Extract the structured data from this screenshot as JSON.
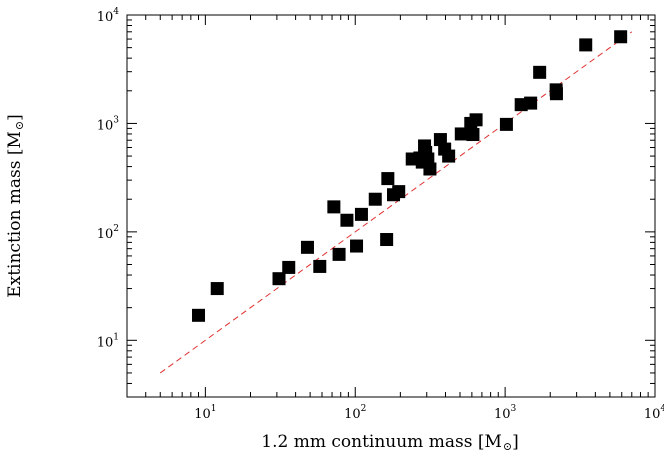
{
  "chart_data": {
    "type": "scatter",
    "title": "",
    "xlabel": "1.2 mm continuum mass [M",
    "ylabel": "Extinction mass [M",
    "xlabel_unit_symbol": "sun",
    "ylabel_unit_symbol": "sun",
    "xscale": "log",
    "yscale": "log",
    "xlim": [
      3,
      10000
    ],
    "ylim": [
      3,
      10000
    ],
    "grid": false,
    "legend": "none",
    "x_ticks": [
      {
        "base": "10",
        "exp": "1",
        "value": 10
      },
      {
        "base": "10",
        "exp": "2",
        "value": 100
      },
      {
        "base": "10",
        "exp": "3",
        "value": 1000
      },
      {
        "base": "10",
        "exp": "4",
        "value": 10000
      }
    ],
    "y_ticks": [
      {
        "base": "10",
        "exp": "1",
        "value": 10
      },
      {
        "base": "10",
        "exp": "2",
        "value": 100
      },
      {
        "base": "10",
        "exp": "3",
        "value": 1000
      },
      {
        "base": "10",
        "exp": "4",
        "value": 10000
      }
    ],
    "series": [
      {
        "marker": "square",
        "color": "#000000",
        "points": [
          [
            9,
            17
          ],
          [
            12,
            30
          ],
          [
            31,
            37
          ],
          [
            36,
            47
          ],
          [
            48,
            72
          ],
          [
            58,
            48
          ],
          [
            72,
            170
          ],
          [
            78,
            62
          ],
          [
            88,
            128
          ],
          [
            102,
            74
          ],
          [
            110,
            145
          ],
          [
            136,
            200
          ],
          [
            162,
            85
          ],
          [
            165,
            310
          ],
          [
            180,
            220
          ],
          [
            195,
            235
          ],
          [
            240,
            470
          ],
          [
            270,
            480
          ],
          [
            280,
            440
          ],
          [
            290,
            620
          ],
          [
            295,
            540
          ],
          [
            305,
            470
          ],
          [
            315,
            380
          ],
          [
            370,
            710
          ],
          [
            395,
            580
          ],
          [
            420,
            500
          ],
          [
            510,
            800
          ],
          [
            590,
            1000
          ],
          [
            610,
            790
          ],
          [
            640,
            1080
          ],
          [
            1020,
            980
          ],
          [
            1280,
            1490
          ],
          [
            1480,
            1540
          ],
          [
            1700,
            2960
          ],
          [
            2190,
            2040
          ],
          [
            2200,
            1880
          ],
          [
            3450,
            5300
          ],
          [
            5900,
            6300
          ]
        ]
      }
    ],
    "reference_line": {
      "style": "dashed",
      "color": "#e03030",
      "from": [
        5,
        5
      ],
      "to": [
        7000,
        7000
      ]
    }
  }
}
